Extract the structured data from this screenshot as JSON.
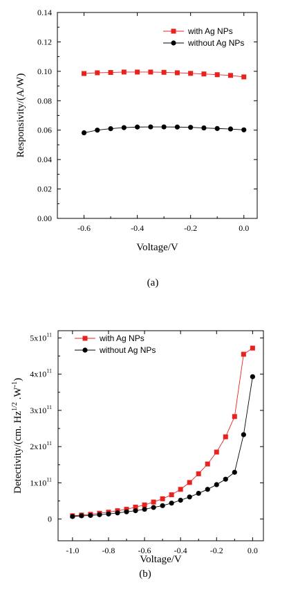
{
  "chart_data": [
    {
      "type": "line",
      "panel_label": "(a)",
      "xlabel": "Voltage/V",
      "ylabel": "Responsivity/(A/W)",
      "xlim": [
        -0.7,
        0.05
      ],
      "ylim": [
        0.0,
        0.14
      ],
      "xticks": [
        -0.6,
        -0.4,
        -0.2,
        0.0
      ],
      "xtick_labels": [
        "-0.6",
        "-0.4",
        "-0.2",
        "0.0"
      ],
      "yticks": [
        0.0,
        0.02,
        0.04,
        0.06,
        0.08,
        0.1,
        0.12,
        0.14
      ],
      "ytick_labels": [
        "0.00",
        "0.02",
        "0.04",
        "0.06",
        "0.08",
        "0.10",
        "0.12",
        "0.14"
      ],
      "legend_position": "top-right",
      "grid": false,
      "series": [
        {
          "name": "with Ag NPs",
          "color": "#e8231f",
          "marker": "square",
          "x": [
            -0.6,
            -0.55,
            -0.5,
            -0.45,
            -0.4,
            -0.35,
            -0.3,
            -0.25,
            -0.2,
            -0.15,
            -0.1,
            -0.05,
            0.0
          ],
          "y": [
            0.0985,
            0.099,
            0.0992,
            0.0995,
            0.0995,
            0.0995,
            0.0993,
            0.099,
            0.0986,
            0.0982,
            0.0977,
            0.0972,
            0.0962
          ]
        },
        {
          "name": "without  Ag NPs",
          "color": "#000000",
          "marker": "circle",
          "x": [
            -0.6,
            -0.55,
            -0.5,
            -0.45,
            -0.4,
            -0.35,
            -0.3,
            -0.25,
            -0.2,
            -0.15,
            -0.1,
            -0.05,
            0.0
          ],
          "y": [
            0.0582,
            0.06,
            0.061,
            0.0617,
            0.0621,
            0.0622,
            0.0622,
            0.0621,
            0.0619,
            0.0615,
            0.0611,
            0.0608,
            0.0602
          ]
        }
      ]
    },
    {
      "type": "line",
      "panel_label": "(b)",
      "xlabel": "Voltage/V",
      "ylabel": "Detectivity/(cm. Hz¹ᐟ² .W⁻¹)",
      "ylabel_parts": {
        "main": "Detectivity/(cm. Hz",
        "sup1": "1/2",
        "mid": " .W",
        "sup2": "-1",
        "end": ")"
      },
      "xlim": [
        -1.08,
        0.06
      ],
      "ylim": [
        -60000000000.0,
        520000000000.0
      ],
      "xticks": [
        -1.0,
        -0.8,
        -0.6,
        -0.4,
        -0.2,
        0.0
      ],
      "xtick_labels": [
        "-1.0",
        "-0.8",
        "-0.6",
        "-0.4",
        "-0.2",
        "0.0"
      ],
      "yticks": [
        0,
        100000000000.0,
        200000000000.0,
        300000000000.0,
        400000000000.0,
        500000000000.0
      ],
      "ytick_labels": [
        {
          "base": "0",
          "exp": ""
        },
        {
          "base": "1x10",
          "exp": "11"
        },
        {
          "base": "2x10",
          "exp": "11"
        },
        {
          "base": "3x10",
          "exp": "11"
        },
        {
          "base": "4x10",
          "exp": "11"
        },
        {
          "base": "5x10",
          "exp": "11"
        }
      ],
      "legend_position": "top-left",
      "grid": false,
      "series": [
        {
          "name": "with Ag NPs",
          "color": "#e8231f",
          "marker": "square",
          "x": [
            -1.0,
            -0.95,
            -0.9,
            -0.85,
            -0.8,
            -0.75,
            -0.7,
            -0.65,
            -0.6,
            -0.55,
            -0.5,
            -0.45,
            -0.4,
            -0.35,
            -0.3,
            -0.25,
            -0.2,
            -0.15,
            -0.1,
            -0.05,
            0.0
          ],
          "y": [
            9000000000.0,
            11000000000.0,
            13000000000.0,
            16000000000.0,
            19000000000.0,
            23000000000.0,
            27000000000.0,
            33000000000.0,
            39000000000.0,
            47000000000.0,
            56000000000.0,
            67000000000.0,
            82000000000.0,
            101000000000.0,
            125000000000.0,
            152000000000.0,
            185000000000.0,
            227000000000.0,
            283000000000.0,
            455000000000.0,
            472000000000.0
          ]
        },
        {
          "name": "without  Ag NPs",
          "color": "#000000",
          "marker": "circle",
          "x": [
            -1.0,
            -0.95,
            -0.9,
            -0.85,
            -0.8,
            -0.75,
            -0.7,
            -0.65,
            -0.6,
            -0.55,
            -0.5,
            -0.45,
            -0.4,
            -0.35,
            -0.3,
            -0.25,
            -0.2,
            -0.15,
            -0.1,
            -0.05,
            0.0
          ],
          "y": [
            7000000000.0,
            9000000000.0,
            10000000000.0,
            12000000000.0,
            14000000000.0,
            17000000000.0,
            20000000000.0,
            23000000000.0,
            27000000000.0,
            32000000000.0,
            37000000000.0,
            44000000000.0,
            52000000000.0,
            61000000000.0,
            71000000000.0,
            82000000000.0,
            95000000000.0,
            110000000000.0,
            129000000000.0,
            233000000000.0,
            393000000000.0
          ]
        }
      ]
    }
  ]
}
